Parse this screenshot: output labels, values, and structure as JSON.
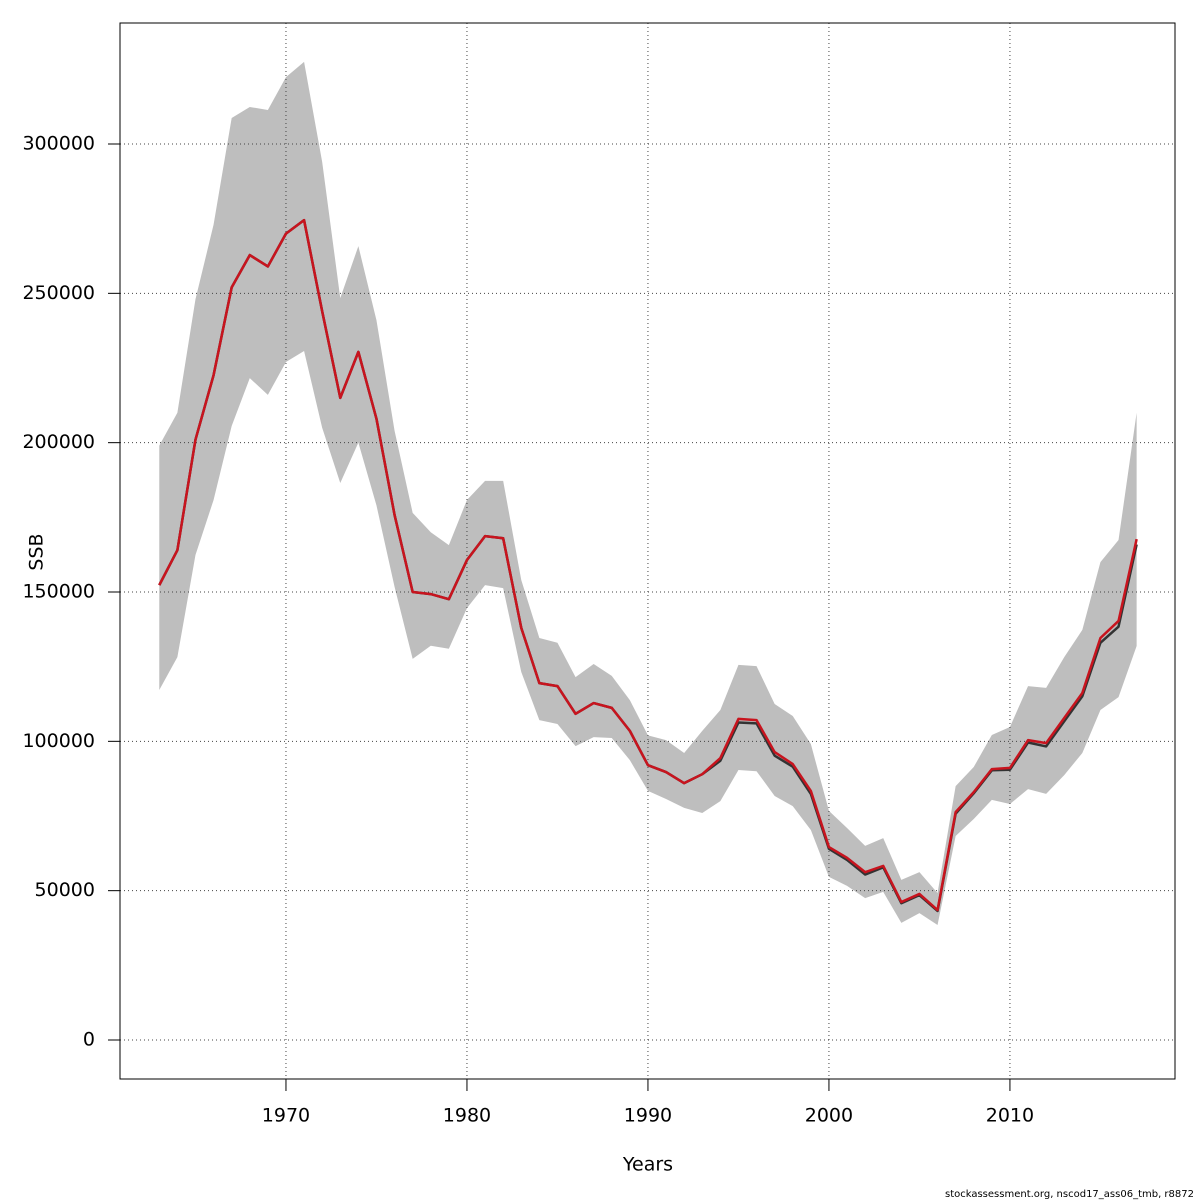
{
  "chart_data": {
    "type": "line",
    "xlabel": "Years",
    "ylabel": "SSB",
    "footnote": "stockassessment.org, nscod17_ass06_tmb, r8872",
    "x": [
      1963,
      1964,
      1965,
      1966,
      1967,
      1968,
      1969,
      1970,
      1971,
      1972,
      1973,
      1974,
      1975,
      1976,
      1977,
      1978,
      1979,
      1980,
      1981,
      1982,
      1983,
      1984,
      1985,
      1986,
      1987,
      1988,
      1989,
      1990,
      1991,
      1992,
      1993,
      1994,
      1995,
      1996,
      1997,
      1998,
      1999,
      2000,
      2001,
      2002,
      2003,
      2004,
      2005,
      2006,
      2007,
      2008,
      2009,
      2010,
      2011,
      2012,
      2013,
      2014,
      2015,
      2016,
      2017
    ],
    "band": {
      "color": "#bebebe",
      "upper": [
        199000,
        210000,
        248000,
        273000,
        308700,
        312400,
        311400,
        322400,
        327500,
        294000,
        248400,
        265800,
        241000,
        204000,
        176500,
        170000,
        165700,
        180800,
        187200,
        187200,
        154000,
        134600,
        133000,
        121500,
        125900,
        121900,
        113800,
        102000,
        100400,
        96100,
        103500,
        110500,
        125600,
        125200,
        112500,
        108500,
        99100,
        76700,
        71000,
        65000,
        67600,
        53600,
        56200,
        49200,
        85000,
        91400,
        102100,
        104800,
        118500,
        117900,
        128200,
        137300,
        160000,
        167400,
        210000
      ],
      "lower": [
        117200,
        128200,
        162400,
        180800,
        205600,
        221600,
        216000,
        227000,
        230700,
        205000,
        186500,
        200000,
        179000,
        151700,
        127600,
        132000,
        131000,
        144600,
        152300,
        151300,
        123200,
        107100,
        105800,
        98400,
        101400,
        101100,
        93700,
        83400,
        80700,
        77700,
        76000,
        80000,
        90400,
        90000,
        81700,
        78300,
        70300,
        54600,
        51600,
        47500,
        49600,
        39200,
        42500,
        38500,
        68300,
        74000,
        80400,
        79000,
        84000,
        82400,
        88700,
        96100,
        110500,
        114800,
        131900
      ]
    },
    "series": [
      {
        "color": "#333333",
        "values": [
          152300,
          164000,
          201000,
          222600,
          252000,
          262800,
          259000,
          270000,
          274500,
          244000,
          215000,
          230400,
          208000,
          175800,
          150000,
          149300,
          147600,
          160700,
          168700,
          168000,
          138000,
          119500,
          118500,
          109200,
          112800,
          111200,
          103500,
          92000,
          89700,
          86000,
          89000,
          93500,
          106300,
          106000,
          95200,
          91500,
          82400,
          64000,
          60300,
          55400,
          57800,
          45800,
          48500,
          43200,
          75800,
          82600,
          90300,
          90500,
          99600,
          98300,
          106700,
          115100,
          133000,
          138400,
          165900
        ]
      },
      {
        "color": "#c8141e",
        "values": [
          152300,
          164000,
          201000,
          222600,
          252000,
          262800,
          259000,
          270000,
          274500,
          244000,
          215000,
          230400,
          208000,
          175800,
          150000,
          149300,
          147600,
          160700,
          168700,
          168000,
          138000,
          119500,
          118500,
          109200,
          112800,
          111200,
          103500,
          92000,
          89700,
          86000,
          89000,
          94400,
          107500,
          107100,
          96400,
          92400,
          83400,
          64600,
          61000,
          56200,
          58300,
          46200,
          48900,
          43500,
          76300,
          83000,
          90700,
          91100,
          100400,
          99400,
          107800,
          116200,
          134600,
          140300,
          167700
        ]
      }
    ],
    "xlim": [
      1960.83,
      2019.12
    ],
    "ylim": [
      -13058,
      340513
    ],
    "xticks": [
      1970,
      1980,
      1990,
      2000,
      2010
    ],
    "yticks": [
      0,
      50000,
      100000,
      150000,
      200000,
      250000,
      300000
    ],
    "grid": true
  }
}
